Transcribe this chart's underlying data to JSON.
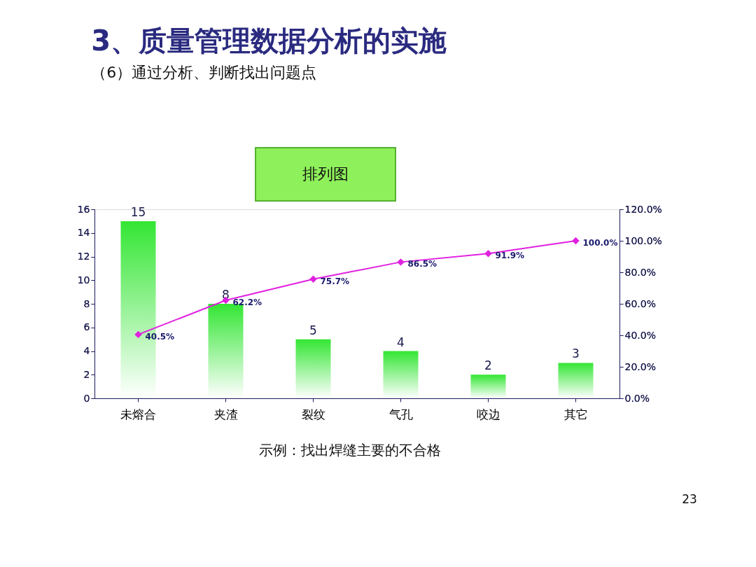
{
  "chart_data": {
    "type": "bar",
    "title": "3、质量管理数据分析的实施",
    "subtitle": "（6）通过分析、判断找出问题点",
    "categories": [
      "未熔合",
      "夹渣",
      "裂纹",
      "气孔",
      "咬边",
      "其它"
    ],
    "series": [
      {
        "color": "#33e633",
        "values": [
          15,
          8,
          5,
          4,
          2,
          3
        ],
        "value_labels": [
          "15",
          "8",
          "5",
          "4",
          "2",
          "3"
        ]
      },
      {
        "type": "line",
        "axis": "y2",
        "color": "#e020e0",
        "marker": "diamond",
        "values": [
          40.5,
          62.2,
          75.7,
          86.5,
          91.9,
          100.0
        ],
        "value_labels": [
          "40.5%",
          "62.2%",
          "75.7%",
          "86.5%",
          "91.9%",
          "100.0%"
        ]
      }
    ],
    "ylim": [
      0,
      16
    ],
    "yticks": [
      0,
      2,
      4,
      6,
      8,
      10,
      12,
      14,
      16
    ],
    "y2lim": [
      0,
      120
    ],
    "y2ticks": [
      {
        "value": 0,
        "label": "0.0%"
      },
      {
        "value": 20,
        "label": "20.0%"
      },
      {
        "value": 40,
        "label": "40.0%"
      },
      {
        "value": 60,
        "label": "60.0%"
      },
      {
        "value": 80,
        "label": "80.0%"
      },
      {
        "value": 100,
        "label": "100.0%"
      },
      {
        "value": 120,
        "label": "120.0%"
      }
    ],
    "grid": false,
    "annotations": [
      "排列图",
      "示例：找出焊缝主要的不合格",
      "23"
    ]
  }
}
